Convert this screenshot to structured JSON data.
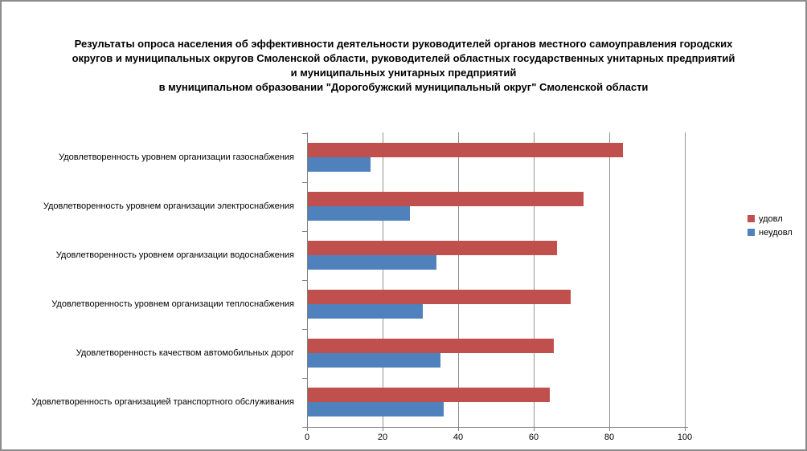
{
  "chart_data": {
    "type": "bar",
    "orientation": "horizontal",
    "title": "Результаты опроса населения об эффективности деятельности руководителей органов местного самоуправления городских округов и муниципальных округов Смоленской области, руководителей областных государственных унитарных предприятий и муниципальных унитарных предприятий в муниципальном образовании \"Дорогобужский муниципальный округ\" Смоленской области",
    "title_lines": [
      "Результаты опроса населения об эффективности деятельности руководителей органов местного самоуправления городских",
      "округов и муниципальных округов Смоленской области, руководителей областных государственных унитарных предприятий",
      "и муниципальных унитарных предприятий",
      "в муниципальном образовании \"Дорогобужский муниципальный округ\" Смоленской области"
    ],
    "categories": [
      "Удовлетворенность уровнем организации газоснабжения",
      "Удовлетворенность уровнем организации электроснабжения",
      "Удовлетворенность уровнем организации водоснабжения",
      "Удовлетворенность уровнем организации теплоснабжения",
      "Удовлетворенность качеством автомобильных дорог",
      "Удовлетворенность организацией транспортного обслуживания"
    ],
    "series": [
      {
        "name": "удовл",
        "color": "#C0504D",
        "values": [
          83.5,
          73,
          66,
          69.5,
          65,
          64
        ]
      },
      {
        "name": "неудовл",
        "color": "#4F81BD",
        "values": [
          16.5,
          27,
          34,
          30.5,
          35,
          36
        ]
      }
    ],
    "xlabel": "",
    "ylabel": "",
    "xlim": [
      0,
      100
    ],
    "x_ticks": [
      0,
      20,
      40,
      60,
      80,
      100
    ],
    "grid": true,
    "legend_position": "right"
  },
  "colors": {
    "axis": "#808080",
    "gridline": "#939393",
    "frame_border": "#8c8c8c",
    "background": "#ffffff",
    "text": "#000000"
  }
}
